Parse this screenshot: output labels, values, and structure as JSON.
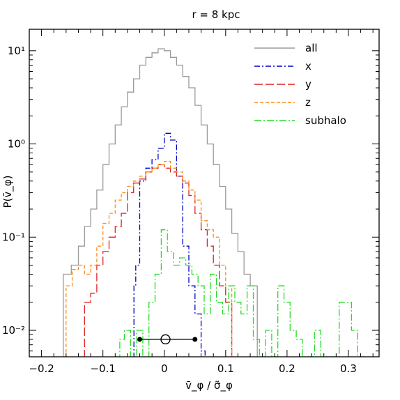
{
  "chart_data": {
    "type": "line",
    "title": "r = 8 kpc",
    "xlabel": "v̄_φ / σ̃_φ",
    "ylabel": "P(v̄_φ)",
    "xlim": [
      -0.22,
      0.35
    ],
    "ylim": [
      0.0052,
      17
    ],
    "yscale": "log",
    "grid": false,
    "legend_position": "top-right",
    "x_ticks": [
      -0.2,
      -0.1,
      0,
      0.1,
      0.2,
      0.3
    ],
    "x_tick_labels": [
      "−0.2",
      "−0.1",
      "0",
      "0.1",
      "0.2",
      "0.3"
    ],
    "y_ticks": [
      0.01,
      0.1,
      1,
      10
    ],
    "y_tick_labels": [
      "10⁻²",
      "10⁻¹",
      "10⁰",
      "10¹"
    ],
    "series": [
      {
        "name": "all",
        "color": "#9a9a9a",
        "dash": "",
        "x": [
          -0.158,
          -0.145,
          -0.135,
          -0.125,
          -0.115,
          -0.105,
          -0.095,
          -0.085,
          -0.075,
          -0.065,
          -0.055,
          -0.045,
          -0.035,
          -0.025,
          -0.015,
          -0.005,
          0.005,
          0.015,
          0.025,
          0.035,
          0.045,
          0.055,
          0.065,
          0.075,
          0.085,
          0.095,
          0.105,
          0.115,
          0.125,
          0.135,
          0.145
        ],
        "y": [
          0.04,
          0.05,
          0.08,
          0.13,
          0.2,
          0.32,
          0.6,
          1.0,
          1.6,
          2.5,
          3.6,
          5.0,
          7.0,
          8.5,
          9.5,
          10.5,
          10.0,
          8.5,
          7.0,
          5.3,
          4.0,
          2.6,
          1.6,
          1.0,
          0.6,
          0.35,
          0.2,
          0.11,
          0.07,
          0.04,
          0.03
        ]
      },
      {
        "name": "x",
        "color": "#0000cc",
        "dash": "8,3,2,3",
        "x": [
          -0.048,
          -0.045,
          -0.035,
          -0.025,
          -0.015,
          -0.005,
          0.005,
          0.015,
          0.025,
          0.035,
          0.045,
          0.055,
          0.065
        ],
        "y": [
          0.03,
          0.05,
          0.4,
          0.55,
          0.68,
          0.9,
          1.3,
          1.1,
          0.45,
          0.08,
          0.03,
          0.015,
          0.006
        ]
      },
      {
        "name": "y",
        "color": "#e02020",
        "dash": "12,4",
        "x": [
          -0.125,
          -0.115,
          -0.105,
          -0.095,
          -0.085,
          -0.075,
          -0.065,
          -0.055,
          -0.045,
          -0.035,
          -0.025,
          -0.015,
          -0.005,
          0.005,
          0.015,
          0.025,
          0.035,
          0.045,
          0.055,
          0.065,
          0.075,
          0.085,
          0.095,
          0.105
        ],
        "y": [
          0.02,
          0.025,
          0.05,
          0.07,
          0.1,
          0.13,
          0.18,
          0.3,
          0.38,
          0.42,
          0.5,
          0.55,
          0.6,
          0.55,
          0.5,
          0.45,
          0.38,
          0.28,
          0.18,
          0.12,
          0.08,
          0.05,
          0.03,
          0.02
        ]
      },
      {
        "name": "z",
        "color": "#ff8c1a",
        "dash": "5,3",
        "x": [
          -0.155,
          -0.145,
          -0.135,
          -0.125,
          -0.115,
          -0.105,
          -0.095,
          -0.085,
          -0.075,
          -0.065,
          -0.055,
          -0.045,
          -0.035,
          -0.025,
          -0.015,
          -0.005,
          0.005,
          0.015,
          0.025,
          0.035,
          0.045,
          0.055,
          0.065,
          0.075,
          0.085,
          0.095,
          0.105
        ],
        "y": [
          0.03,
          0.045,
          0.05,
          0.04,
          0.05,
          0.08,
          0.14,
          0.18,
          0.25,
          0.3,
          0.35,
          0.4,
          0.45,
          0.5,
          0.55,
          0.6,
          0.65,
          0.55,
          0.5,
          0.4,
          0.32,
          0.25,
          0.15,
          0.12,
          0.1,
          0.05,
          0.03
        ]
      },
      {
        "name": "subhalo",
        "color": "#22dd22",
        "dash": "10,3,2,3",
        "x": [
          -0.075,
          -0.07,
          -0.06,
          -0.05,
          -0.04,
          -0.03,
          -0.02,
          -0.01,
          0,
          0.01,
          0.02,
          0.03,
          0.04,
          0.05,
          0.06,
          0.07,
          0.08,
          0.09,
          0.1,
          0.11,
          0.12,
          0.13,
          0.14,
          0.15,
          0.16,
          0.17,
          0.18,
          0.19,
          0.2,
          0.21,
          0.22,
          0.23,
          0.24,
          0.25,
          0.26,
          0.27,
          0.28,
          0.29,
          0.3,
          0.31,
          0.32,
          0.33
        ],
        "y": [
          0.005,
          0.008,
          0.01,
          0.005,
          0.01,
          0.005,
          0.02,
          0.04,
          0.12,
          0.07,
          0.05,
          0.06,
          0.05,
          0.04,
          0.03,
          0.015,
          0.04,
          0.02,
          0.015,
          0.03,
          0.02,
          0.015,
          0.03,
          0.008,
          0.005,
          0.01,
          0.005,
          0.03,
          0.02,
          0.01,
          0.008,
          0.005,
          0.005,
          0.01,
          0.005,
          0.005,
          0.005,
          0.02,
          0.02,
          0.01,
          0.005,
          0.005
        ]
      }
    ],
    "markers": {
      "y": 0.008,
      "filled_x": [
        -0.04,
        0.05
      ],
      "open_x": [
        0.002
      ]
    }
  }
}
